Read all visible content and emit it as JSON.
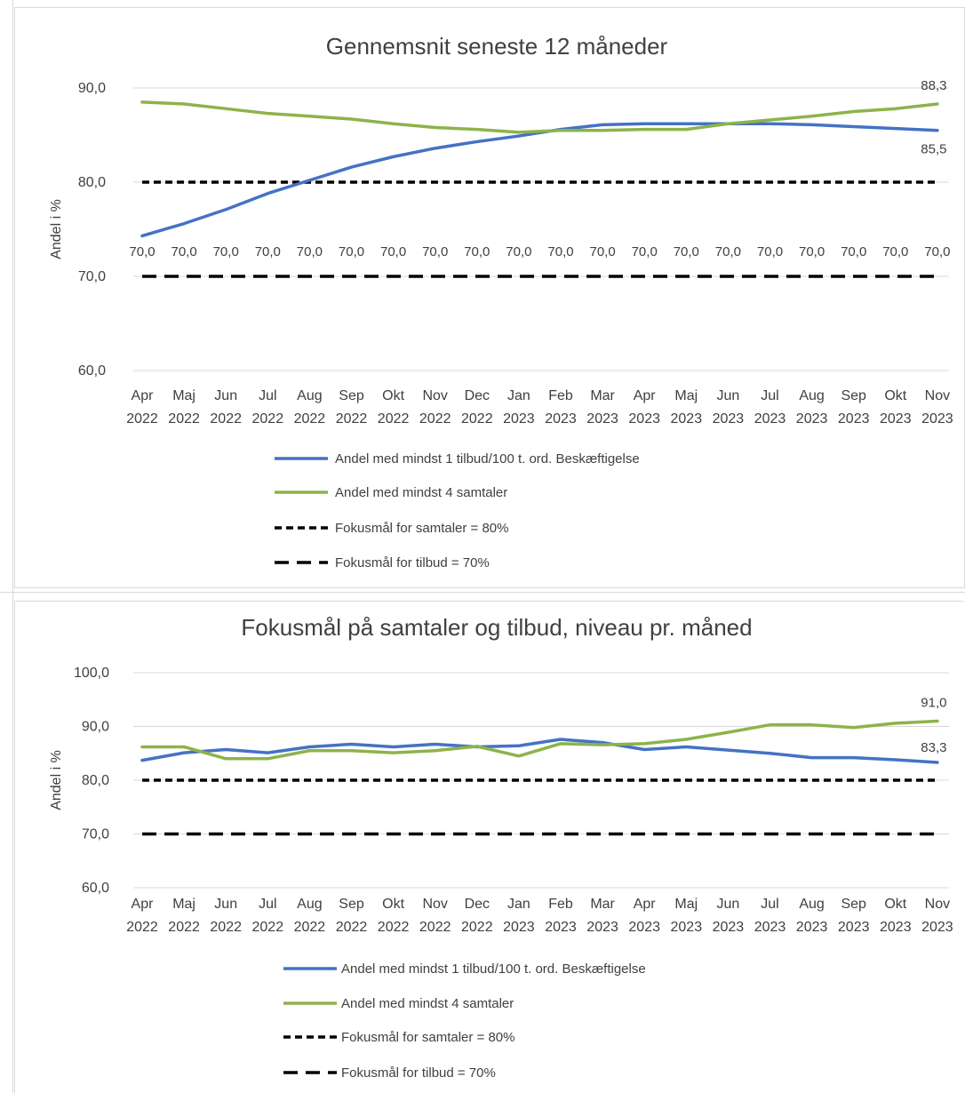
{
  "colors": {
    "series_blue": "#4472c4",
    "series_green": "#8db34a",
    "target": "#000000",
    "text": "#404040",
    "grid": "#d9d9d9"
  },
  "chart_data": [
    {
      "type": "line",
      "title": "Gennemsnit seneste 12 måneder",
      "ylabel": "Andel i %",
      "xlabel": "",
      "ylim": [
        60,
        90
      ],
      "yticks": [
        60,
        70,
        80,
        90
      ],
      "ytick_labels": [
        "60,0",
        "70,0",
        "80,0",
        "90,0"
      ],
      "grid": true,
      "legend_position": "bottom",
      "categories": [
        [
          "Apr",
          "2022"
        ],
        [
          "Maj",
          "2022"
        ],
        [
          "Jun",
          "2022"
        ],
        [
          "Jul",
          "2022"
        ],
        [
          "Aug",
          "2022"
        ],
        [
          "Sep",
          "2022"
        ],
        [
          "Okt",
          "2022"
        ],
        [
          "Nov",
          "2022"
        ],
        [
          "Dec",
          "2022"
        ],
        [
          "Jan",
          "2023"
        ],
        [
          "Feb",
          "2023"
        ],
        [
          "Mar",
          "2023"
        ],
        [
          "Apr",
          "2023"
        ],
        [
          "Maj",
          "2023"
        ],
        [
          "Jun",
          "2023"
        ],
        [
          "Jul",
          "2023"
        ],
        [
          "Aug",
          "2023"
        ],
        [
          "Sep",
          "2023"
        ],
        [
          "Okt",
          "2023"
        ],
        [
          "Nov",
          "2023"
        ]
      ],
      "series": [
        {
          "name": "Andel med mindst 1 tilbud/100 t. ord. Beskæftigelse",
          "color": "#4472c4",
          "style": "solid",
          "values": [
            74.3,
            75.6,
            77.1,
            78.8,
            80.2,
            81.6,
            82.7,
            83.6,
            84.3,
            84.9,
            85.6,
            86.1,
            86.2,
            86.2,
            86.2,
            86.2,
            86.1,
            85.9,
            85.7,
            85.5
          ],
          "end_label": "85,5"
        },
        {
          "name": "Andel med mindst 4 samtaler",
          "color": "#8db34a",
          "style": "solid",
          "values": [
            88.5,
            88.3,
            87.8,
            87.3,
            87.0,
            86.7,
            86.2,
            85.8,
            85.6,
            85.3,
            85.5,
            85.5,
            85.6,
            85.6,
            86.2,
            86.6,
            87.0,
            87.5,
            87.8,
            88.3
          ],
          "end_label": "88,3"
        },
        {
          "name": "Fokusmål for samtaler = 80%",
          "color": "#000000",
          "style": "dotted",
          "values": [
            80,
            80,
            80,
            80,
            80,
            80,
            80,
            80,
            80,
            80,
            80,
            80,
            80,
            80,
            80,
            80,
            80,
            80,
            80,
            80
          ]
        },
        {
          "name": "Fokusmål for tilbud = 70%",
          "color": "#000000",
          "style": "dashed",
          "values": [
            70,
            70,
            70,
            70,
            70,
            70,
            70,
            70,
            70,
            70,
            70,
            70,
            70,
            70,
            70,
            70,
            70,
            70,
            70,
            70
          ],
          "point_labels": [
            "70,0",
            "70,0",
            "70,0",
            "70,0",
            "70,0",
            "70,0",
            "70,0",
            "70,0",
            "70,0",
            "70,0",
            "70,0",
            "70,0",
            "70,0",
            "70,0",
            "70,0",
            "70,0",
            "70,0",
            "70,0",
            "70,0",
            "70,0"
          ]
        }
      ]
    },
    {
      "type": "line",
      "title": "Fokusmål på samtaler og tilbud, niveau pr. måned",
      "ylabel": "Andel i %",
      "xlabel": "",
      "ylim": [
        60,
        100
      ],
      "yticks": [
        60,
        70,
        80,
        90,
        100
      ],
      "ytick_labels": [
        "60,0",
        "70,0",
        "80,0",
        "90,0",
        "100,0"
      ],
      "grid": true,
      "legend_position": "bottom",
      "categories": [
        [
          "Apr",
          "2022"
        ],
        [
          "Maj",
          "2022"
        ],
        [
          "Jun",
          "2022"
        ],
        [
          "Jul",
          "2022"
        ],
        [
          "Aug",
          "2022"
        ],
        [
          "Sep",
          "2022"
        ],
        [
          "Okt",
          "2022"
        ],
        [
          "Nov",
          "2022"
        ],
        [
          "Dec",
          "2022"
        ],
        [
          "Jan",
          "2023"
        ],
        [
          "Feb",
          "2023"
        ],
        [
          "Mar",
          "2023"
        ],
        [
          "Apr",
          "2023"
        ],
        [
          "Maj",
          "2023"
        ],
        [
          "Jun",
          "2023"
        ],
        [
          "Jul",
          "2023"
        ],
        [
          "Aug",
          "2023"
        ],
        [
          "Sep",
          "2023"
        ],
        [
          "Okt",
          "2023"
        ],
        [
          "Nov",
          "2023"
        ]
      ],
      "series": [
        {
          "name": "Andel med mindst 1 tilbud/100 t. ord. Beskæftigelse",
          "color": "#4472c4",
          "style": "solid",
          "values": [
            83.7,
            85.1,
            85.7,
            85.1,
            86.2,
            86.7,
            86.2,
            86.7,
            86.2,
            86.4,
            87.6,
            87.0,
            85.7,
            86.2,
            85.6,
            85.0,
            84.2,
            84.2,
            83.8,
            83.3
          ],
          "end_label": "83,3"
        },
        {
          "name": "Andel med mindst 4 samtaler",
          "color": "#8db34a",
          "style": "solid",
          "values": [
            86.2,
            86.2,
            84.0,
            84.0,
            85.5,
            85.5,
            85.1,
            85.5,
            86.3,
            84.5,
            86.8,
            86.6,
            86.8,
            87.6,
            88.9,
            90.3,
            90.3,
            89.8,
            90.6,
            91.0
          ],
          "end_label": "91,0"
        },
        {
          "name": "Fokusmål for samtaler = 80%",
          "color": "#000000",
          "style": "dotted",
          "values": [
            80,
            80,
            80,
            80,
            80,
            80,
            80,
            80,
            80,
            80,
            80,
            80,
            80,
            80,
            80,
            80,
            80,
            80,
            80,
            80
          ]
        },
        {
          "name": "Fokusmål for tilbud = 70%",
          "color": "#000000",
          "style": "dashed",
          "values": [
            70,
            70,
            70,
            70,
            70,
            70,
            70,
            70,
            70,
            70,
            70,
            70,
            70,
            70,
            70,
            70,
            70,
            70,
            70,
            70
          ]
        }
      ]
    }
  ]
}
